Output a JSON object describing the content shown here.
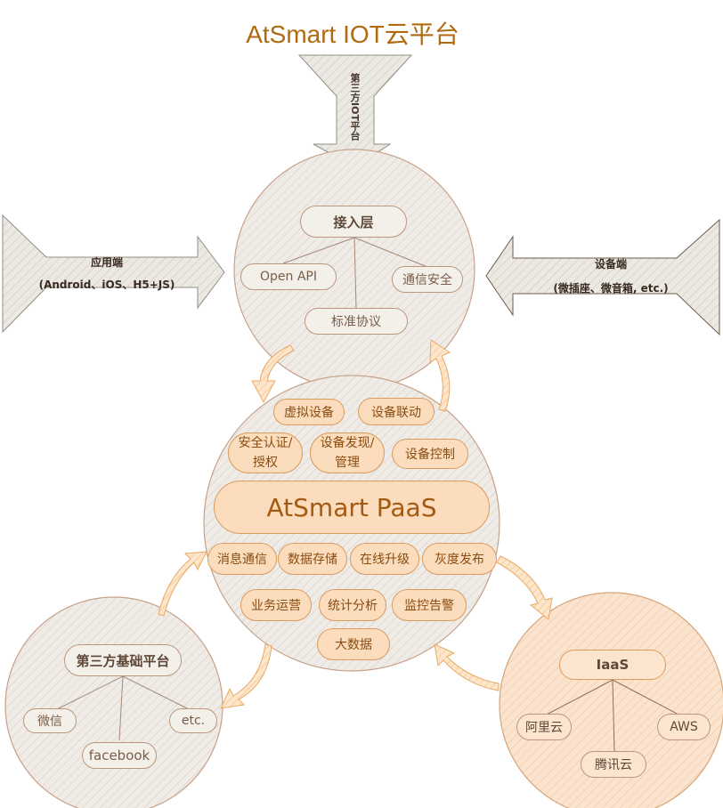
{
  "title": "AtSmart IOT云平台",
  "top_arrow_label": "第三方IOT平台",
  "left_arrow": {
    "line1": "应用端",
    "line2": "(Android、iOS、H5+JS)"
  },
  "right_arrow": {
    "line1": "设备端",
    "line2": "(微插座、微音箱, etc.)"
  },
  "access_layer": {
    "title": "接入层",
    "items": [
      "Open API",
      "通信安全",
      "标准协议"
    ]
  },
  "paas": {
    "title": "AtSmart PaaS",
    "top_items": [
      "虚拟设备",
      "设备联动",
      "安全认证/授权",
      "设备发现/管理",
      "设备控制"
    ],
    "bottom_items": [
      "消息通信",
      "数据存储",
      "在线升级",
      "灰度发布",
      "业务运营",
      "统计分析",
      "监控告警",
      "大数据"
    ]
  },
  "third_party": {
    "title": "第三方基础平台",
    "items": [
      "微信",
      "etc.",
      "facebook"
    ]
  },
  "iaas": {
    "title": "IaaS",
    "items": [
      "阿里云",
      "AWS",
      "腾讯云"
    ]
  },
  "colors": {
    "title": "#b06a10",
    "gray_fill": "#eeeae4",
    "gray_stroke": "#b38a70",
    "orange_fill": "#fbe0c6",
    "orange_stroke": "#dc9c5e",
    "arrow_orange": "#f6c58f"
  }
}
